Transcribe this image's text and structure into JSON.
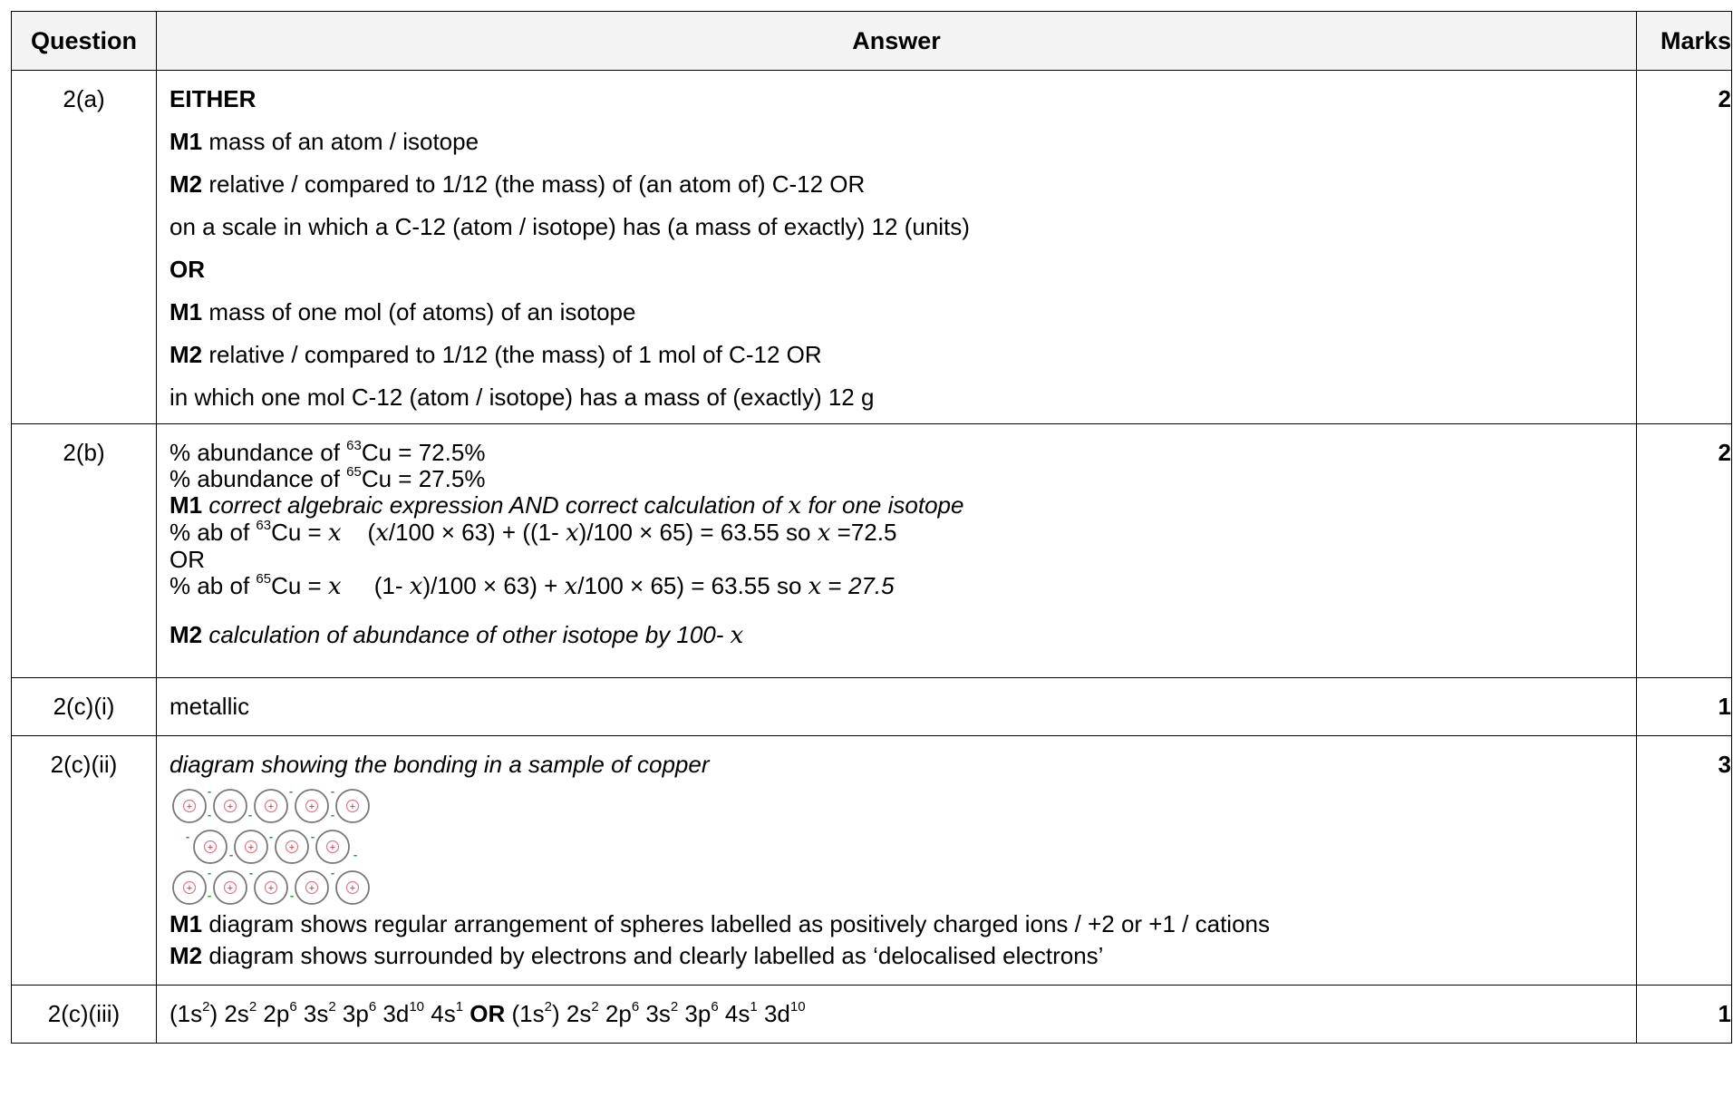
{
  "headers": {
    "question": "Question",
    "answer": "Answer",
    "marks": "Marks"
  },
  "rows": [
    {
      "question": "2(a)",
      "marks": "2",
      "lines": {
        "l1": "EITHER",
        "l2_b": "M1",
        "l2_t": " mass of an atom / isotope",
        "l3_b": "M2",
        "l3_t": " relative / compared to 1/12 (the mass) of (an atom of) C-12 OR",
        "l4": "on a scale in which a C-12 (atom / isotope) has (a mass of exactly) 12 (units)",
        "l5": "OR",
        "l6_b": "M1",
        "l6_t": " mass of one mol (of atoms) of an isotope",
        "l7_b": "M2",
        "l7_t": " relative / compared to 1/12 (the mass) of 1 mol of C-12 OR",
        "l8": "in which one mol C-12 (atom / isotope) has a mass of (exactly) 12 g"
      }
    },
    {
      "question": "2(b)",
      "marks": "2",
      "lines": {
        "l1_pre": "% abundance of ",
        "l1_sup": "63",
        "l1_post": "Cu = 72.5%",
        "l2_pre": "% abundance of ",
        "l2_sup": "65",
        "l2_post": "Cu = 27.5%",
        "l3_b": "M1",
        "l3_i": " correct algebraic expression AND correct calculation of ",
        "l3_x": "x",
        "l3_i2": " for one isotope",
        "l4_pre": "% ab of ",
        "l4_sup": "63",
        "l4_a": "Cu = ",
        "l4_x1": "x",
        "l4_b": "    (",
        "l4_x2": "x",
        "l4_c": "/100 × 63) + ((1- ",
        "l4_x3": "x",
        "l4_d": ")/100 × 65) = 63.55 so ",
        "l4_x4": "x",
        "l4_e": " =72.5",
        "l5": "OR",
        "l6_pre": "% ab of ",
        "l6_sup": "65",
        "l6_a": "Cu = ",
        "l6_x1": "x",
        "l6_b": "     (1- ",
        "l6_x2": "x",
        "l6_c": ")/100 × 63) + ",
        "l6_x3": "x",
        "l6_d": "/100 × 65) = 63.55 so ",
        "l6_x4": "x",
        "l6_e": " = ",
        "l6_ei": "27.5",
        "l7_b": "M2",
        "l7_i": " calculation of abundance of other isotope by 100- ",
        "l7_x": "x"
      }
    },
    {
      "question": "2(c)(i)",
      "marks": "1",
      "text": "metallic"
    },
    {
      "question": "2(c)(ii)",
      "marks": "3",
      "caption": "diagram showing the bonding in a sample of copper",
      "m1_b": "M1",
      "m1_t": " diagram shows regular arrangement of spheres labelled as positively charged ions / +2 or +1 / cations",
      "m2_b": "M2",
      "m2_t": " diagram shows surrounded by electrons and clearly labelled as ‘delocalised electrons’",
      "ion_charge": "+",
      "electron_charge": "-"
    },
    {
      "question": "2(c)(iii)",
      "marks": "1",
      "c1": "(1s",
      "s1": "2",
      "c2": ") 2s",
      "s2": "2",
      "c3": " 2p",
      "s3": "6",
      "c4": " 3s",
      "s4": "2",
      "c5": " 3p",
      "s5": "6",
      "c6": " 3d",
      "s6": "10",
      "c7": " 4s",
      "s7": "1",
      "or": " OR ",
      "d1": "(1s",
      "t1": "2",
      "d2": ") 2s",
      "t2": "2",
      "d3": " 2p",
      "t3": "6",
      "d4": " 3s",
      "t4": "2",
      "d5": " 3p",
      "t5": "6",
      "d6": " 4s",
      "t6": "1",
      "d7": " 3d",
      "t7": "10"
    }
  ]
}
